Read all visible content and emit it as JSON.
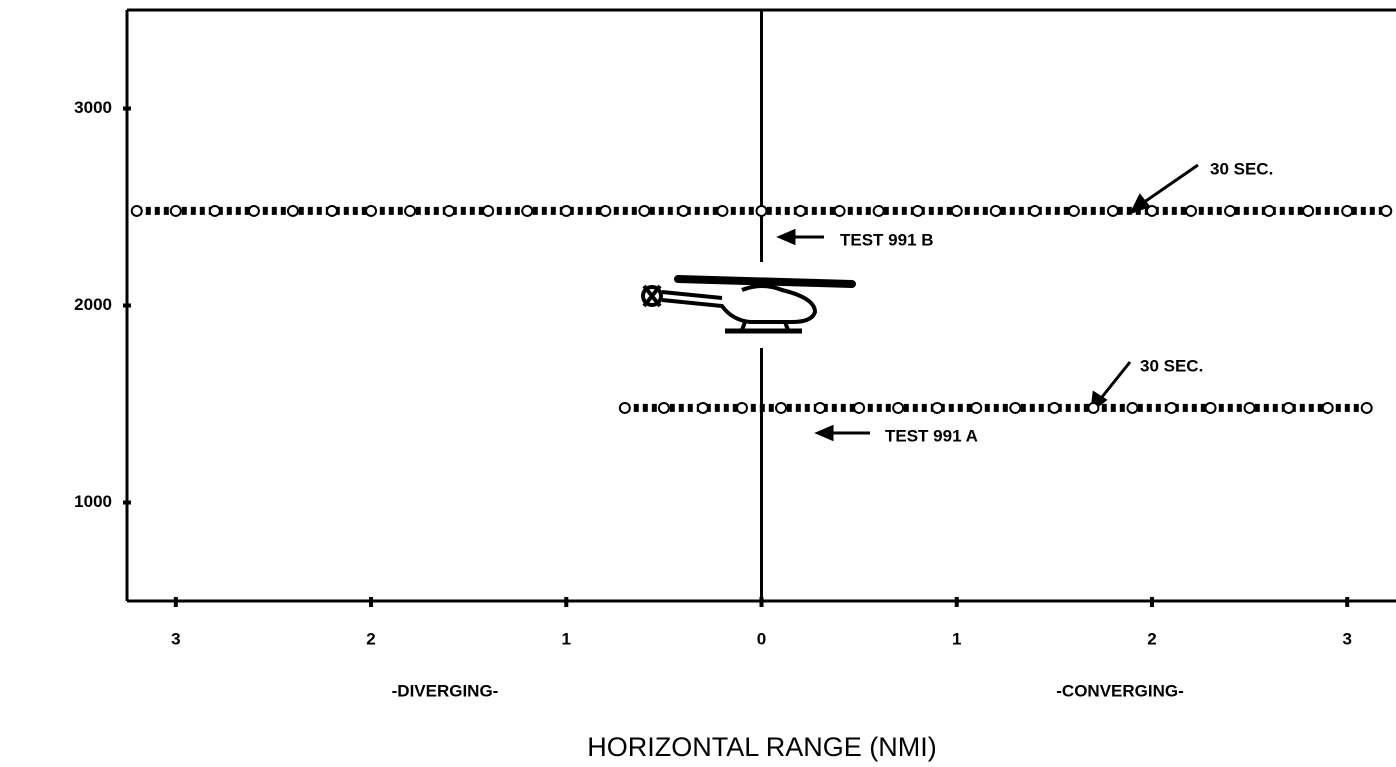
{
  "chart_data": {
    "type": "line",
    "x_label": "HORIZONTAL RANGE (NMI)",
    "side_labels": [
      "-DIVERGING-",
      "-CONVERGING-"
    ],
    "annotations": [
      "30 SEC.",
      "30 SEC.",
      "TEST 991 B",
      "TEST 991 A"
    ],
    "xlim": [
      -3.25,
      3.25
    ],
    "ylim": [
      500,
      3500
    ],
    "xticks": [
      {
        "value": -3,
        "label": "3"
      },
      {
        "value": -2,
        "label": "2"
      },
      {
        "value": -1,
        "label": "1"
      },
      0,
      1,
      2,
      3
    ],
    "yticks": [
      1000,
      2000,
      3000
    ],
    "series": [
      {
        "name": "TEST 991 B",
        "color": "#000000",
        "x": [
          -3.2,
          -3.0,
          -2.8,
          -2.6,
          -2.4,
          -2.2,
          -2.0,
          -1.8,
          -1.6,
          -1.4,
          -1.2,
          -1.0,
          -0.8,
          -0.6,
          -0.4,
          -0.2,
          0.0,
          0.2,
          0.4,
          0.6,
          0.8,
          1.0,
          1.2,
          1.4,
          1.6,
          1.8,
          2.0,
          2.2,
          2.4,
          2.6,
          2.8,
          3.0,
          3.2
        ],
        "values": [
          2480,
          2480,
          2480,
          2480,
          2480,
          2480,
          2480,
          2480,
          2480,
          2480,
          2480,
          2480,
          2480,
          2480,
          2480,
          2480,
          2480,
          2480,
          2480,
          2480,
          2480,
          2480,
          2480,
          2480,
          2480,
          2480,
          2480,
          2480,
          2480,
          2480,
          2480,
          2480,
          2480
        ]
      },
      {
        "name": "TEST 991 A",
        "color": "#000000",
        "x": [
          -0.7,
          -0.5,
          -0.3,
          -0.1,
          0.1,
          0.3,
          0.5,
          0.7,
          0.9,
          1.1,
          1.3,
          1.5,
          1.7,
          1.9,
          2.1,
          2.3,
          2.5,
          2.7,
          2.9,
          3.1
        ],
        "values": [
          1480,
          1480,
          1480,
          1480,
          1480,
          1480,
          1480,
          1480,
          1480,
          1480,
          1480,
          1480,
          1480,
          1480,
          1480,
          1480,
          1480,
          1480,
          1480,
          1480
        ]
      }
    ]
  }
}
